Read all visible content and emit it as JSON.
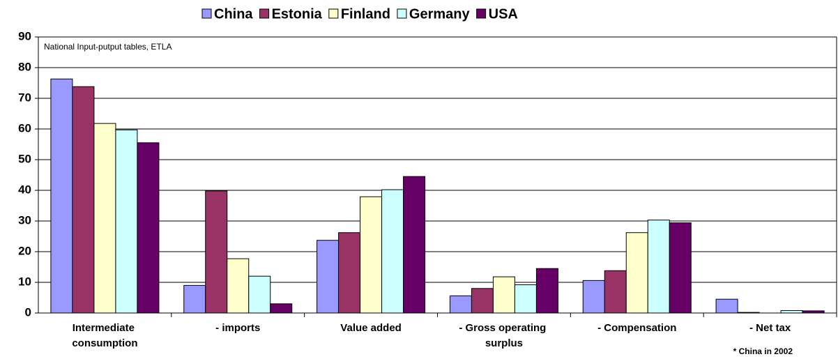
{
  "chart_data": {
    "type": "bar",
    "categories": [
      "Intermediate consumption",
      "- imports",
      "Value added",
      "- Gross operating surplus",
      "- Compensation",
      "- Net tax"
    ],
    "series": [
      {
        "name": "China",
        "color": "#9999ff",
        "values": [
          76.3,
          9.0,
          23.7,
          5.6,
          10.6,
          4.5
        ]
      },
      {
        "name": "Estonia",
        "color": "#993366",
        "values": [
          73.8,
          39.8,
          26.2,
          8.0,
          13.8,
          0.2
        ]
      },
      {
        "name": "Finland",
        "color": "#ffffcc",
        "values": [
          61.8,
          17.7,
          37.9,
          11.8,
          26.2,
          0
        ]
      },
      {
        "name": "Germany",
        "color": "#ccffff",
        "values": [
          59.7,
          12.0,
          40.2,
          9.2,
          30.3,
          0.8
        ]
      },
      {
        "name": "USA",
        "color": "#660066",
        "values": [
          55.5,
          3.0,
          44.5,
          14.5,
          29.4,
          0.7
        ]
      }
    ],
    "ylim": [
      0,
      90
    ],
    "yticks": [
      0,
      10,
      20,
      30,
      40,
      50,
      60,
      70,
      80,
      90
    ],
    "grid": true,
    "annotations": [
      "National Input-putput tables, ETLA",
      "* China in 2002"
    ]
  }
}
